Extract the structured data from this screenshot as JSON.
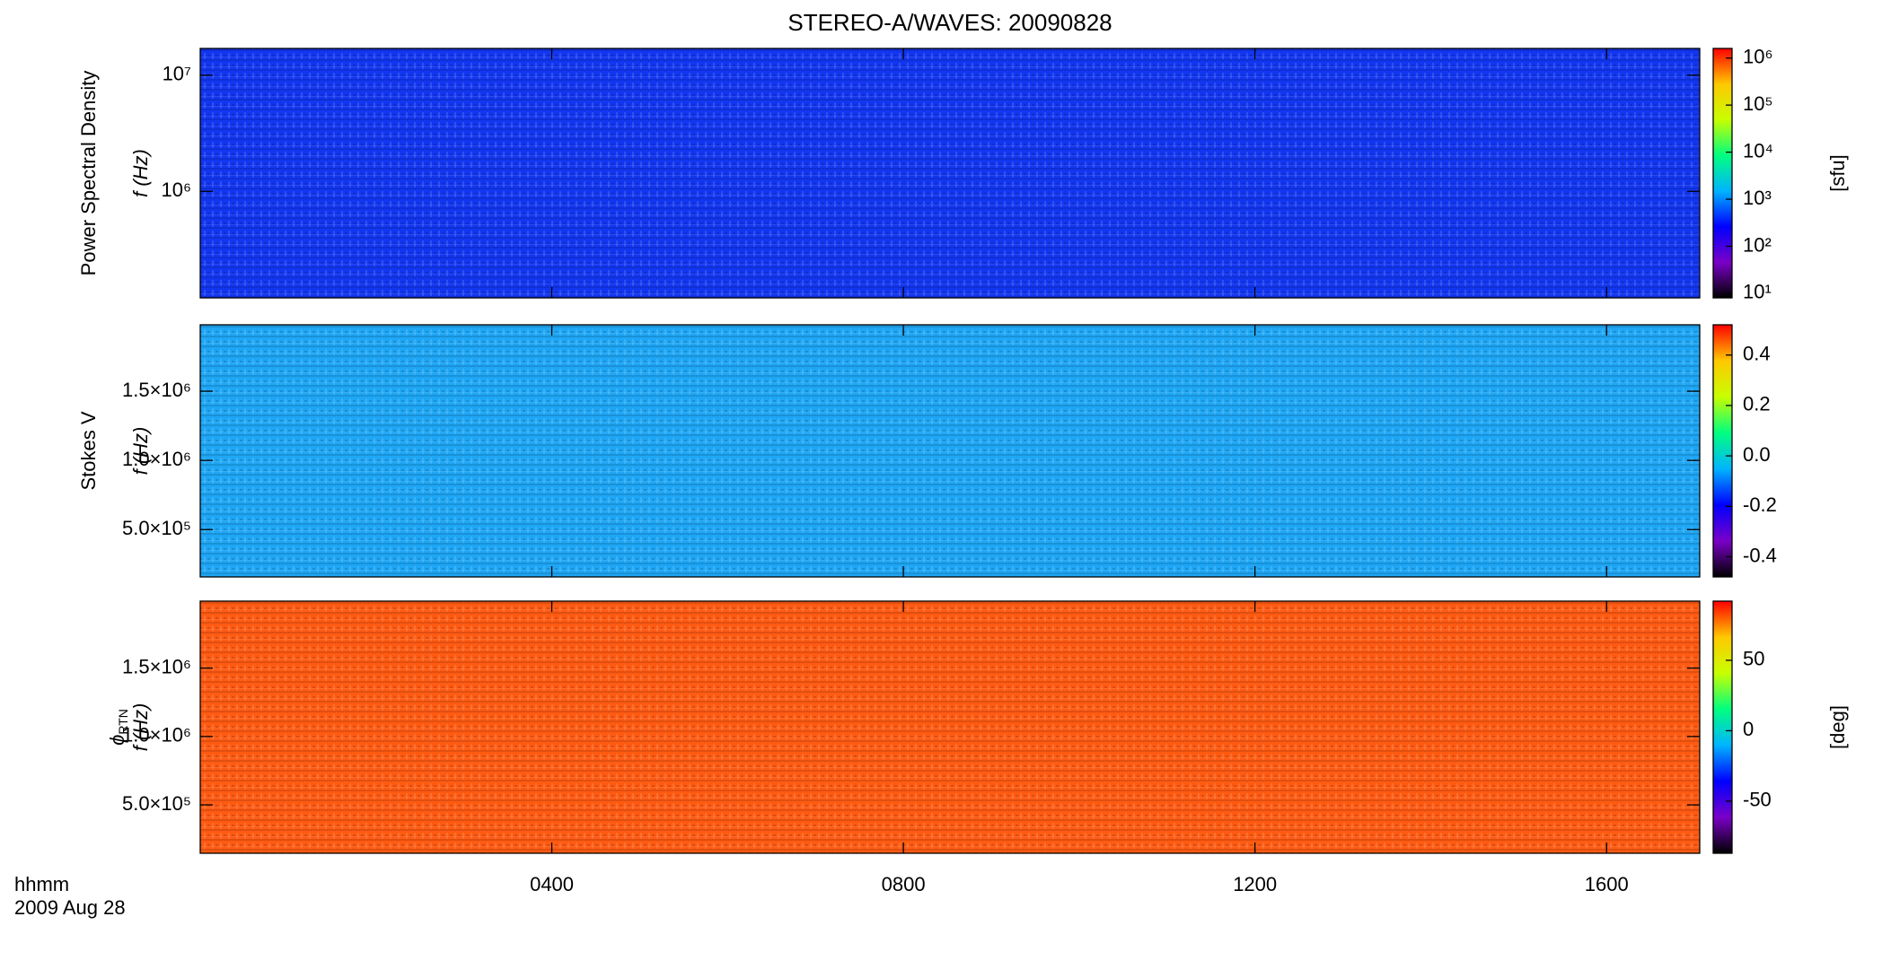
{
  "chart_data": [
    {
      "type": "heatmap",
      "title": "STEREO-A/WAVES: 20090828",
      "ylabel": "Power Spectral Density",
      "ylabel2": "f (Hz)",
      "yscale": "log",
      "ylim": [
        121000,
        17000000
      ],
      "yticks": [
        {
          "value": 1000000,
          "label": "10⁶"
        },
        {
          "value": 10000000,
          "label": "10⁷"
        }
      ],
      "color": "#1236f0",
      "colormap": [
        "#000000",
        "#7a00c8",
        "#0000ff",
        "#00b4ff",
        "#00ff80",
        "#c8ff00",
        "#ffc800",
        "#ff0000"
      ],
      "cscale": "log",
      "clim": [
        8,
        1600000
      ],
      "cticks": [
        {
          "value": 10,
          "label": "10¹"
        },
        {
          "value": 100,
          "label": "10²"
        },
        {
          "value": 1000,
          "label": "10³"
        },
        {
          "value": 10000,
          "label": "10⁴"
        },
        {
          "value": 100000,
          "label": "10⁵"
        },
        {
          "value": 1000000,
          "label": "10⁶"
        }
      ],
      "clabel": "[sfu]"
    },
    {
      "type": "heatmap",
      "ylabel": "Stokes V",
      "ylabel2": "f (Hz)",
      "yscale": "linear",
      "ylim": [
        158000,
        1980000
      ],
      "yticks": [
        {
          "value": 500000,
          "label": "5.0×10⁵"
        },
        {
          "value": 1000000,
          "label": "1.0×10⁶"
        },
        {
          "value": 1500000,
          "label": "1.5×10⁶"
        }
      ],
      "color": "#1ea6f5",
      "colormap": [
        "#000000",
        "#7a00c8",
        "#0000ff",
        "#00b4ff",
        "#00ff80",
        "#c8ff00",
        "#ffc800",
        "#ff0000"
      ],
      "cscale": "linear",
      "clim": [
        -0.48,
        0.52
      ],
      "cticks": [
        -0.4,
        -0.2,
        {
          "value": 0,
          "label": "0.0"
        },
        0.2,
        0.4
      ]
    },
    {
      "type": "heatmap",
      "ylabel": {
        "symbol": "ϕ",
        "subscript": "RTN"
      },
      "ylabel2": "f (Hz)",
      "yscale": "linear",
      "ylim": [
        146000,
        1990000
      ],
      "yticks": [
        {
          "value": 500000,
          "label": "5.0×10⁵"
        },
        {
          "value": 1000000,
          "label": "1.0×10⁶"
        },
        {
          "value": 1500000,
          "label": "1.5×10⁶"
        }
      ],
      "color": "#ff5a12",
      "colormap": [
        "#000000",
        "#7a00c8",
        "#0000ff",
        "#00b4ff",
        "#00ff80",
        "#c8ff00",
        "#ffc800",
        "#ff0000"
      ],
      "cscale": "linear",
      "clim": [
        -87,
        92
      ],
      "cticks": [
        -50,
        0,
        50
      ],
      "clabel": "[deg]",
      "xlabel": "hhmm",
      "xlabel2": "2009 Aug 28",
      "xlim": [
        0,
        17.06
      ],
      "xticks": [
        {
          "value": 4,
          "label": "0400"
        },
        {
          "value": 8,
          "label": "0800"
        },
        {
          "value": 12,
          "label": "1200"
        },
        {
          "value": 16,
          "label": "1600"
        }
      ]
    }
  ]
}
